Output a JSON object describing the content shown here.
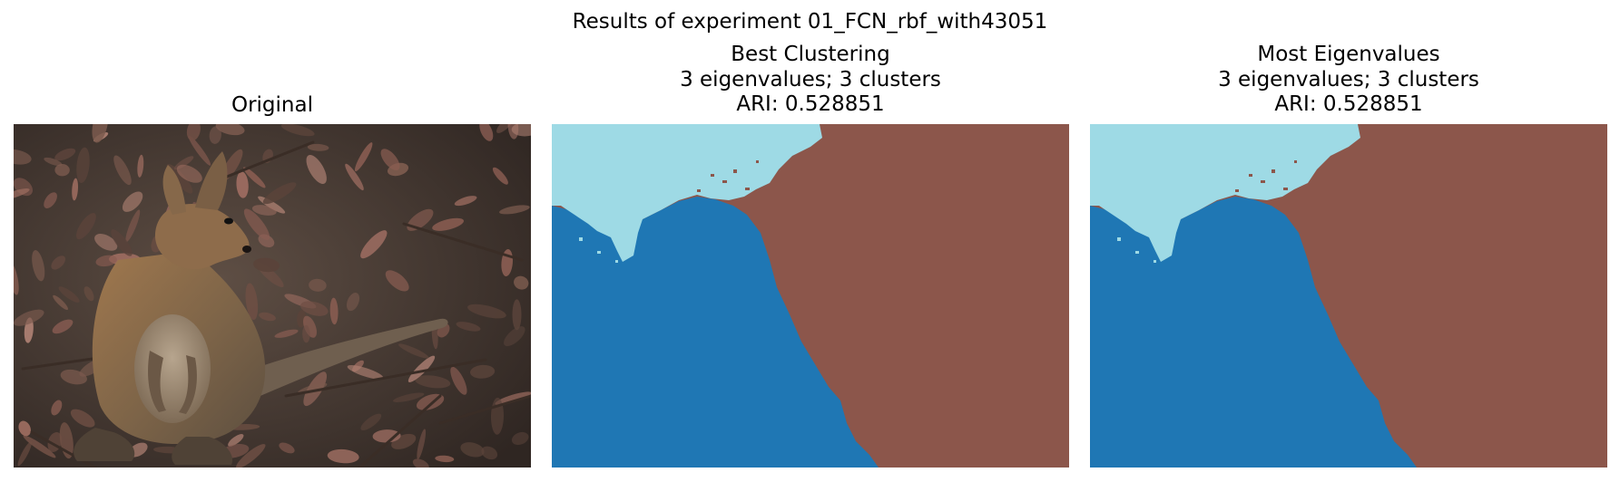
{
  "figure": {
    "title": "Results of experiment 01_FCN_rbf_with43051"
  },
  "panels": [
    {
      "title_lines": [
        "Original"
      ],
      "content": "photo-of-wallaby-on-leaf-litter"
    },
    {
      "title_lines": [
        "Best Clustering",
        "3 eigenvalues; 3 clusters",
        "ARI: 0.528851"
      ],
      "content": "cluster-segmentation-map"
    },
    {
      "title_lines": [
        "Most Eigenvalues",
        "3 eigenvalues; 3 clusters",
        "ARI: 0.528851"
      ],
      "content": "cluster-segmentation-map"
    }
  ],
  "colors": {
    "cluster_light_blue": "#9edae5",
    "cluster_blue": "#1f77b4",
    "cluster_brown": "#8c564b"
  }
}
